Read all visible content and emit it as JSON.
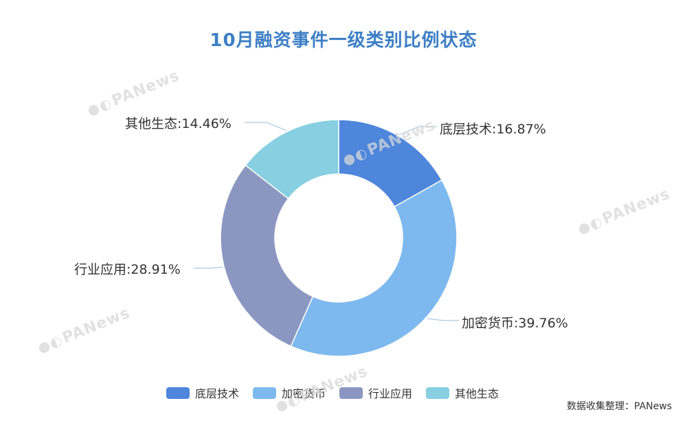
{
  "source_note": "数据收集整理：PANews",
  "watermark_text": "PANews",
  "colors": {
    "title": "#3d7fc6",
    "slices": [
      "#4e86dc",
      "#7db9ee",
      "#8b97c1",
      "#87cfe1"
    ],
    "leader": "#a9c9e2"
  },
  "chart_data": {
    "type": "pie",
    "variant": "donut",
    "title": "10月融资事件一级类别比例状态",
    "labels": [
      "底层技术",
      "加密货币",
      "行业应用",
      "其他生态"
    ],
    "values": [
      16.87,
      39.76,
      28.91,
      14.46
    ],
    "value_labels": [
      "底层技术:16.87%",
      "加密货币:39.76%",
      "行业应用:28.91%",
      "其他生态:14.46%"
    ],
    "legend": {
      "position": "bottom",
      "items": [
        "底层技术",
        "加密货币",
        "行业应用",
        "其他生态"
      ]
    }
  }
}
